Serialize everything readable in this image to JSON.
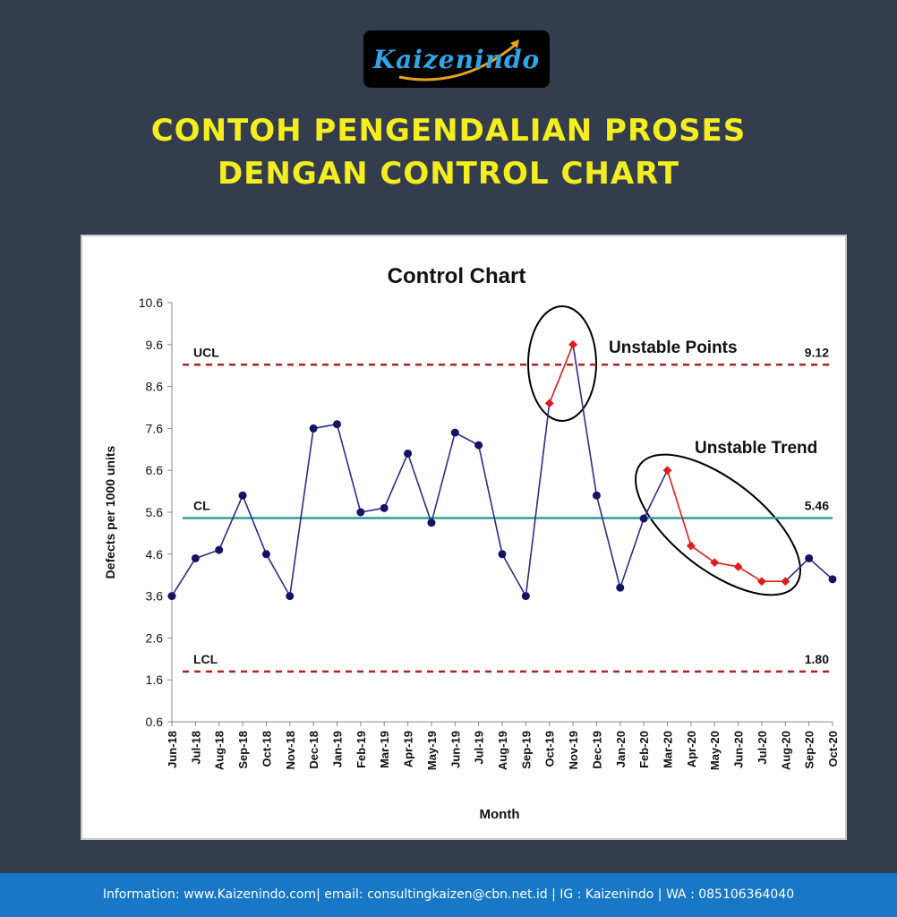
{
  "logo": {
    "text": "Kaizenindo"
  },
  "headline": {
    "line1": "CONTOH PENGENDALIAN PROSES",
    "line2": "DENGAN CONTROL CHART"
  },
  "chart_data": {
    "type": "line",
    "title": "Control Chart",
    "xlabel": "Month",
    "ylabel": "Defects per 1000  units",
    "ylim": [
      0.6,
      10.6
    ],
    "yticks": [
      0.6,
      1.6,
      2.6,
      3.6,
      4.6,
      5.6,
      6.6,
      7.6,
      8.6,
      9.6,
      10.6
    ],
    "categories": [
      "Jun-18",
      "Jul-18",
      "Aug-18",
      "Sep-18",
      "Oct-18",
      "Nov-18",
      "Dec-18",
      "Jan-19",
      "Feb-19",
      "Mar-19",
      "Apr-19",
      "May-19",
      "Jun-19",
      "Jul-19",
      "Aug-19",
      "Sep-19",
      "Oct-19",
      "Nov-19",
      "Dec-19",
      "Jan-20",
      "Feb-20",
      "Mar-20",
      "Apr-20",
      "May-20",
      "Jun-20",
      "Jul-20",
      "Aug-20",
      "Sep-20",
      "Oct-20"
    ],
    "values": [
      3.6,
      4.5,
      4.7,
      6.0,
      4.6,
      3.6,
      7.6,
      7.7,
      5.6,
      5.7,
      7.0,
      5.35,
      7.5,
      7.2,
      4.6,
      3.6,
      8.2,
      9.6,
      6.0,
      3.8,
      5.45,
      6.6,
      4.8,
      4.4,
      4.3,
      3.95,
      3.95,
      4.5,
      4.0
    ],
    "highlight_indices": [
      16,
      17,
      21,
      22,
      23,
      24,
      25,
      26
    ],
    "colors": {
      "line": "#2c2c8c",
      "point": "#141466",
      "highlight": "#e01b1b",
      "cl": "#2aa198",
      "limit": "#b22222"
    },
    "limits": [
      {
        "label": "UCL",
        "value": 9.12,
        "value_label": "9.12"
      },
      {
        "label": "CL",
        "value": 5.46,
        "value_label": "5.46"
      },
      {
        "label": "LCL",
        "value": 1.8,
        "value_label": "1.80"
      }
    ],
    "annotations": [
      {
        "text": "Unstable Points"
      },
      {
        "text": "Unstable Trend"
      }
    ]
  },
  "footer": {
    "text": "Information: www.Kaizenindo.com| email: consultingkaizen@cbn.net.id | IG : Kaizenindo | WA : 085106364040"
  }
}
